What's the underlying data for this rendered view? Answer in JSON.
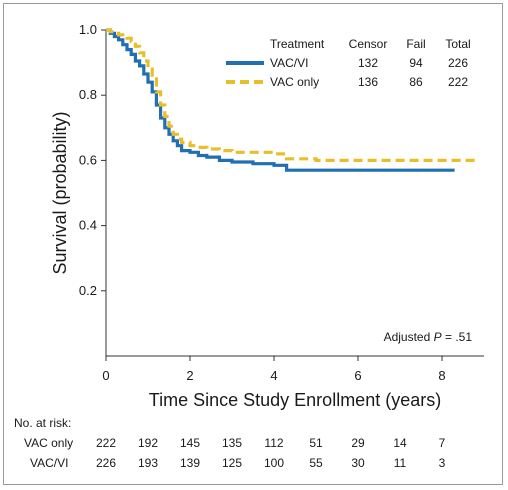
{
  "chart_data": {
    "type": "line",
    "title": "",
    "xlabel": "Time Since Study Enrollment (years)",
    "ylabel": "Survival (probability)",
    "xlim": [
      0,
      9
    ],
    "ylim": [
      0,
      1.0
    ],
    "x_ticks": [
      0,
      2,
      4,
      6,
      8
    ],
    "x_tick_labels": [
      "0",
      "2",
      "4",
      "6",
      "8"
    ],
    "y_ticks": [
      0.2,
      0.4,
      0.6,
      0.8,
      1.0
    ],
    "y_tick_labels": [
      "0.2",
      "0.4",
      "0.6",
      "0.8",
      "1.0"
    ],
    "grid": false,
    "legend_placement": "top-right",
    "legend": {
      "headers": [
        "Treatment",
        "Censor",
        "Fail",
        "Total"
      ],
      "rows": [
        {
          "name": "VAC/VI",
          "censor": "132",
          "fail": "94",
          "total": "226"
        },
        {
          "name": "VAC only",
          "censor": "136",
          "fail": "86",
          "total": "222"
        }
      ]
    },
    "annotation": {
      "prefix": "Adjusted ",
      "italic": "P",
      "suffix": " = .51"
    },
    "series": [
      {
        "name": "VAC/VI",
        "color": "#1f6fb2",
        "style": "solid",
        "x": [
          0,
          0.1,
          0.2,
          0.3,
          0.4,
          0.5,
          0.6,
          0.7,
          0.8,
          0.9,
          1.0,
          1.1,
          1.2,
          1.3,
          1.4,
          1.5,
          1.6,
          1.7,
          1.8,
          2.0,
          2.2,
          2.4,
          2.7,
          3.0,
          3.5,
          4.0,
          4.3,
          5.0,
          6.0,
          7.0,
          8.0,
          8.3
        ],
        "y": [
          1.0,
          0.99,
          0.98,
          0.97,
          0.955,
          0.94,
          0.925,
          0.905,
          0.89,
          0.865,
          0.84,
          0.81,
          0.77,
          0.73,
          0.7,
          0.68,
          0.66,
          0.645,
          0.63,
          0.625,
          0.615,
          0.61,
          0.6,
          0.595,
          0.59,
          0.585,
          0.57,
          0.57,
          0.57,
          0.57,
          0.57,
          0.57
        ]
      },
      {
        "name": "VAC only",
        "color": "#e8bf2a",
        "style": "dashed",
        "x": [
          0,
          0.1,
          0.2,
          0.3,
          0.4,
          0.5,
          0.6,
          0.7,
          0.8,
          0.9,
          1.0,
          1.1,
          1.2,
          1.3,
          1.4,
          1.5,
          1.6,
          1.7,
          1.8,
          2.0,
          2.2,
          2.4,
          2.7,
          3.0,
          3.5,
          4.0,
          4.3,
          5.0,
          6.0,
          7.0,
          8.0,
          8.8
        ],
        "y": [
          1.0,
          0.995,
          0.99,
          0.985,
          0.98,
          0.975,
          0.965,
          0.95,
          0.93,
          0.905,
          0.88,
          0.85,
          0.81,
          0.77,
          0.735,
          0.705,
          0.68,
          0.665,
          0.655,
          0.645,
          0.64,
          0.635,
          0.63,
          0.625,
          0.625,
          0.62,
          0.605,
          0.6,
          0.6,
          0.6,
          0.6,
          0.6
        ]
      }
    ]
  },
  "risk_table": {
    "title": "No. at risk:",
    "times": [
      0,
      1,
      2,
      3,
      4,
      5,
      6,
      7,
      8
    ],
    "rows": [
      {
        "label": "VAC only",
        "counts": [
          "222",
          "192",
          "145",
          "135",
          "112",
          "51",
          "29",
          "14",
          "7"
        ]
      },
      {
        "label": "VAC/VI",
        "counts": [
          "226",
          "193",
          "139",
          "125",
          "100",
          "55",
          "30",
          "11",
          "3"
        ]
      }
    ]
  }
}
